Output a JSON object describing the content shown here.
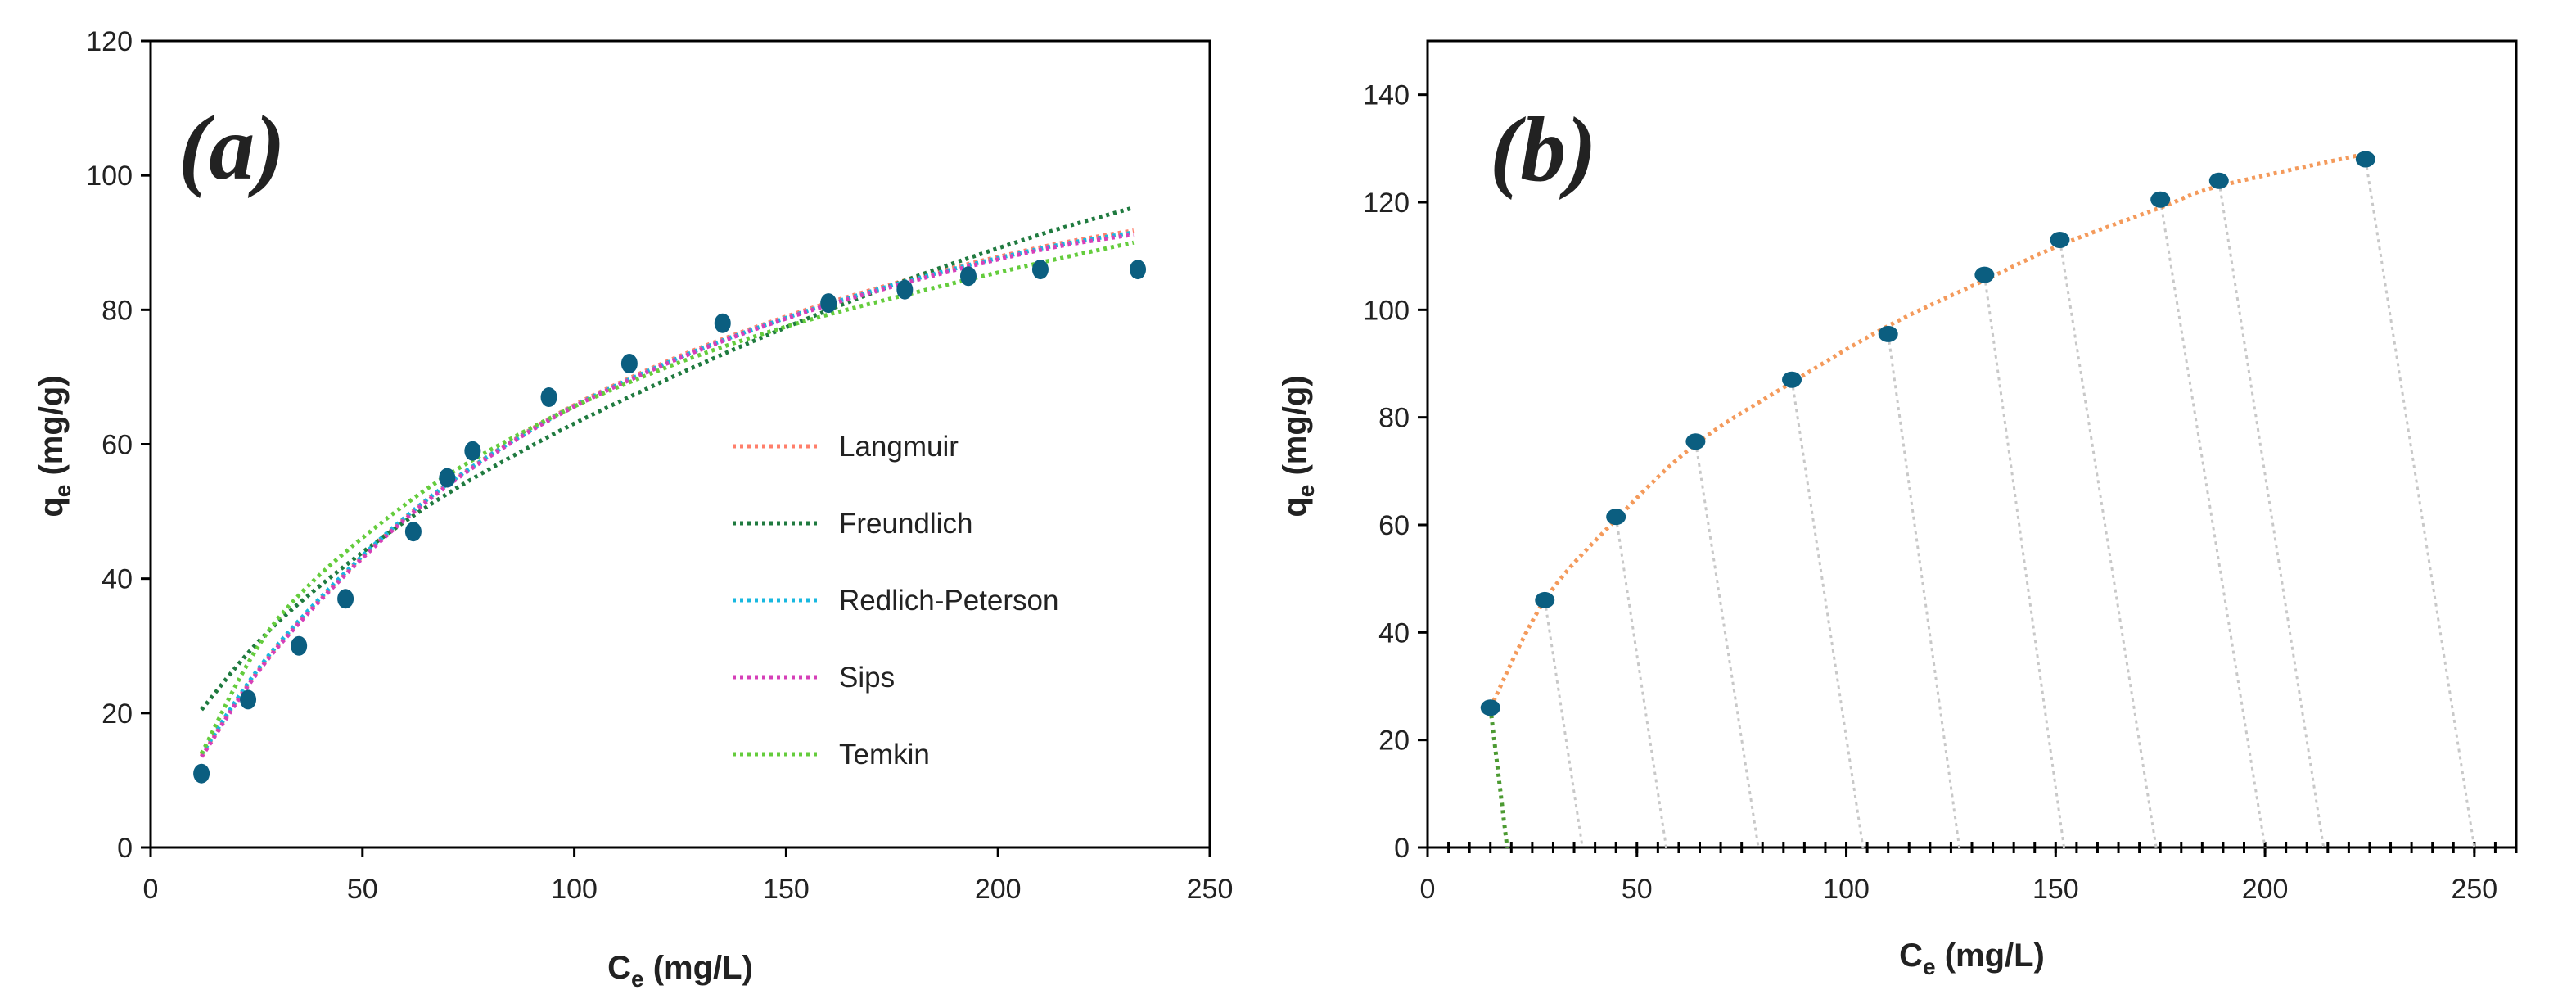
{
  "colors": {
    "point": "#0b5e80",
    "langmuir": "#ff7f6b",
    "freundlich": "#1f7a3f",
    "redlich_peterson": "#18b8e0",
    "sips": "#d63fb8",
    "temkin": "#64cc3c",
    "fit_b": "#f49a5b",
    "drop_green": "#4c9a32",
    "drop_gray": "#c8c8c8",
    "axis": "#000000"
  },
  "chart_data": [
    {
      "id": "a",
      "type": "scatter",
      "panel_label": "(a)",
      "xlabel": {
        "main": "C",
        "sub": "e",
        "unit": " (mg/L)"
      },
      "ylabel": {
        "main": "q",
        "sub": "e",
        "unit": " (mg/g)"
      },
      "xlim": [
        0,
        250
      ],
      "ylim": [
        0,
        120
      ],
      "xticks": [
        0,
        50,
        100,
        150,
        200,
        250
      ],
      "yticks": [
        0,
        20,
        40,
        60,
        80,
        100,
        120
      ],
      "xtick_labels": [
        "0",
        "50",
        "100",
        "150",
        "200",
        "250"
      ],
      "ytick_labels": [
        "0",
        "20",
        "40",
        "60",
        "80",
        "100",
        "120"
      ],
      "grid": false,
      "legend_position": "center-right",
      "points": {
        "x": [
          12,
          23,
          35,
          46,
          62,
          70,
          76,
          94,
          113,
          135,
          160,
          178,
          193,
          210,
          233
        ],
        "y": [
          11,
          22,
          30,
          37,
          47,
          55,
          59,
          67,
          72,
          78,
          81,
          83,
          85,
          86,
          86
        ]
      },
      "fits": [
        {
          "name": "Langmuir",
          "color_key": "langmuir",
          "x": [
            12,
            30,
            60,
            90,
            120,
            150,
            180,
            210,
            232
          ],
          "y": [
            13.7,
            30.0,
            49.0,
            62.3,
            71.8,
            79.0,
            84.7,
            89.3,
            91.8
          ]
        },
        {
          "name": " Freundlich",
          "color_key": "freundlich",
          "x": [
            12,
            30,
            60,
            90,
            120,
            150,
            180,
            210,
            232
          ],
          "y": [
            20.5,
            33.5,
            48.5,
            59.8,
            69.1,
            77.4,
            84.8,
            91.2,
            95.2
          ]
        },
        {
          "name": "Redlich-Peterson",
          "color_key": "redlich_peterson",
          "x": [
            12,
            30,
            60,
            90,
            120,
            150,
            180,
            210,
            232
          ],
          "y": [
            13.9,
            30.2,
            49.1,
            62.2,
            71.6,
            78.8,
            84.5,
            89.1,
            91.5
          ]
        },
        {
          "name": "Sips",
          "color_key": "sips",
          "x": [
            12,
            30,
            60,
            90,
            120,
            150,
            180,
            210,
            232
          ],
          "y": [
            13.5,
            29.8,
            48.8,
            62.1,
            71.5,
            78.7,
            84.3,
            88.9,
            91.2
          ]
        },
        {
          "name": "Temkin",
          "color_key": "temkin",
          "x": [
            12,
            30,
            60,
            90,
            120,
            150,
            180,
            210,
            232
          ],
          "y": [
            14.0,
            34.0,
            51.0,
            62.5,
            71.0,
            77.5,
            82.5,
            87.0,
            90.0
          ]
        }
      ]
    },
    {
      "id": "b",
      "type": "scatter",
      "panel_label": "(b)",
      "xlabel": {
        "main": "C",
        "sub": "e",
        "unit": " (mg/L)"
      },
      "ylabel": {
        "main": "q",
        "sub": "e",
        "unit": " (mg/g)"
      },
      "xlim": [
        0,
        260
      ],
      "ylim": [
        0,
        150
      ],
      "xticks": [
        0,
        50,
        100,
        150,
        200,
        250
      ],
      "yticks": [
        0,
        20,
        40,
        60,
        80,
        100,
        120,
        140
      ],
      "xtick_labels": [
        "0",
        "50",
        "100",
        "150",
        "200",
        "250"
      ],
      "ytick_labels": [
        "0",
        "20",
        "40",
        "60",
        "80",
        "100",
        "120",
        "140"
      ],
      "grid": false,
      "points": {
        "x": [
          15,
          28,
          45,
          64,
          87,
          110,
          133,
          151,
          175,
          189,
          224
        ],
        "y": [
          26,
          46,
          61.5,
          75.5,
          87,
          95.5,
          106.5,
          113,
          120.5,
          124,
          128
        ]
      },
      "fit": {
        "color_key": "fit_b",
        "x": [
          15,
          28,
          45,
          64,
          87,
          110,
          133,
          151,
          175,
          189,
          224
        ],
        "y": [
          26,
          46,
          61,
          75,
          86.5,
          97,
          105.5,
          112,
          119,
          123,
          129
        ]
      },
      "projections": {
        "from_x": [
          15,
          28,
          45,
          64,
          87,
          110,
          133,
          151,
          175,
          189,
          224
        ],
        "from_y": [
          26,
          46,
          61.5,
          75.5,
          87,
          95.5,
          106.5,
          113,
          120.5,
          124,
          128
        ],
        "to_x": [
          19,
          37,
          57,
          79,
          104,
          127,
          152,
          174,
          200,
          214,
          250
        ],
        "color_keys": [
          "drop_green",
          "drop_gray",
          "drop_gray",
          "drop_gray",
          "drop_gray",
          "drop_gray",
          "drop_gray",
          "drop_gray",
          "drop_gray",
          "drop_gray",
          "drop_gray"
        ]
      },
      "baseline_minor_tick_step": 5
    }
  ]
}
